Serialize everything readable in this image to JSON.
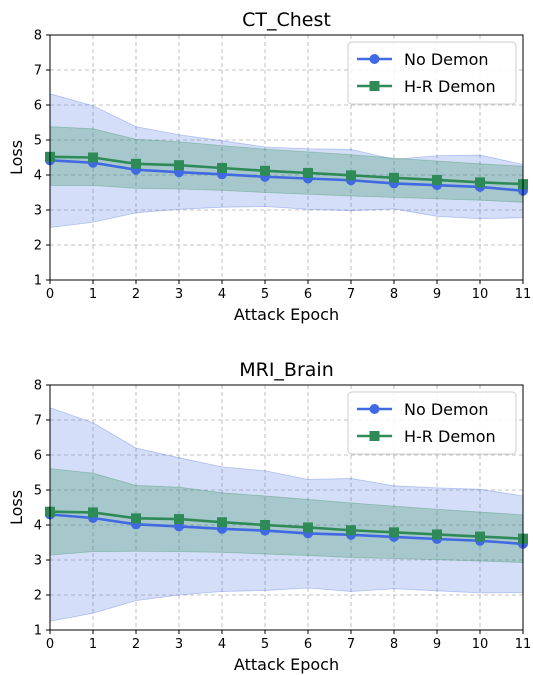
{
  "chart_data": [
    {
      "type": "line",
      "title": "CT_Chest",
      "xlabel": "Attack Epoch",
      "ylabel": "Loss",
      "x": [
        0,
        1,
        2,
        3,
        4,
        5,
        6,
        7,
        8,
        9,
        10,
        11
      ],
      "xlim": [
        0,
        11
      ],
      "ylim": [
        1,
        8
      ],
      "xticks": [
        "0",
        "1",
        "2",
        "3",
        "4",
        "5",
        "6",
        "7",
        "8",
        "9",
        "10",
        "11"
      ],
      "yticks": [
        "1",
        "2",
        "3",
        "4",
        "5",
        "6",
        "7",
        "8"
      ],
      "grid": true,
      "legend_position": "top-right",
      "series": [
        {
          "name": "No Demon",
          "color": "#4169e1",
          "marker": "circle",
          "values": [
            4.42,
            4.35,
            4.15,
            4.08,
            4.02,
            3.95,
            3.9,
            3.85,
            3.76,
            3.71,
            3.66,
            3.55
          ],
          "upper": [
            6.32,
            5.98,
            5.38,
            5.15,
            4.98,
            4.8,
            4.75,
            4.73,
            4.45,
            4.55,
            4.57,
            4.3
          ],
          "lower": [
            2.5,
            2.65,
            2.92,
            3.02,
            3.08,
            3.1,
            3.02,
            2.98,
            3.03,
            2.82,
            2.75,
            2.78
          ]
        },
        {
          "name": "H-R Demon",
          "color": "#2e8b57",
          "marker": "square",
          "values": [
            4.52,
            4.5,
            4.32,
            4.28,
            4.2,
            4.12,
            4.06,
            3.99,
            3.92,
            3.86,
            3.79,
            3.74
          ],
          "upper": [
            5.38,
            5.32,
            5.02,
            4.95,
            4.84,
            4.74,
            4.66,
            4.58,
            4.48,
            4.4,
            4.32,
            4.25
          ],
          "lower": [
            3.7,
            3.7,
            3.62,
            3.6,
            3.56,
            3.5,
            3.45,
            3.4,
            3.36,
            3.32,
            3.28,
            3.22
          ]
        }
      ]
    },
    {
      "type": "line",
      "title": "MRI_Brain",
      "xlabel": "Attack Epoch",
      "ylabel": "Loss",
      "x": [
        0,
        1,
        2,
        3,
        4,
        5,
        6,
        7,
        8,
        9,
        10,
        11
      ],
      "xlim": [
        0,
        11
      ],
      "ylim": [
        1,
        8
      ],
      "xticks": [
        "0",
        "1",
        "2",
        "3",
        "4",
        "5",
        "6",
        "7",
        "8",
        "9",
        "10",
        "11"
      ],
      "yticks": [
        "1",
        "2",
        "3",
        "4",
        "5",
        "6",
        "7",
        "8"
      ],
      "grid": true,
      "legend_position": "top-right",
      "series": [
        {
          "name": "No Demon",
          "color": "#4169e1",
          "marker": "circle",
          "values": [
            4.3,
            4.2,
            4.02,
            3.96,
            3.89,
            3.84,
            3.76,
            3.72,
            3.66,
            3.6,
            3.55,
            3.46
          ],
          "upper": [
            7.35,
            6.92,
            6.2,
            5.92,
            5.66,
            5.55,
            5.3,
            5.33,
            5.12,
            5.06,
            5.02,
            4.83
          ],
          "lower": [
            1.25,
            1.48,
            1.84,
            2.0,
            2.1,
            2.13,
            2.2,
            2.1,
            2.18,
            2.12,
            2.06,
            2.07
          ]
        },
        {
          "name": "H-R Demon",
          "color": "#2e8b57",
          "marker": "square",
          "values": [
            4.38,
            4.36,
            4.19,
            4.17,
            4.08,
            4.0,
            3.93,
            3.85,
            3.79,
            3.73,
            3.67,
            3.61
          ],
          "upper": [
            5.61,
            5.48,
            5.13,
            5.08,
            4.92,
            4.83,
            4.73,
            4.63,
            4.54,
            4.45,
            4.37,
            4.29
          ],
          "lower": [
            3.14,
            3.24,
            3.25,
            3.24,
            3.22,
            3.17,
            3.13,
            3.07,
            3.04,
            3.01,
            2.97,
            2.93
          ]
        }
      ]
    }
  ]
}
